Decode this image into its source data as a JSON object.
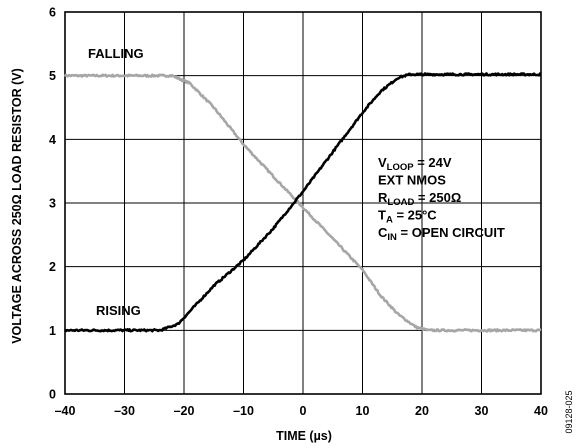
{
  "chart_data": {
    "type": "line",
    "title": "",
    "xlabel": "TIME (µs)",
    "ylabel": "VOLTAGE ACROSS 250Ω LOAD RESISTOR (V)",
    "xlim": [
      -40,
      40
    ],
    "ylim": [
      0,
      6
    ],
    "xticks": [
      -40,
      -30,
      -20,
      -10,
      0,
      10,
      20,
      30,
      40
    ],
    "yticks": [
      0,
      1,
      2,
      3,
      4,
      5,
      6
    ],
    "xtick_labels": [
      "–40",
      "–30",
      "–20",
      "–10",
      "0",
      "10",
      "20",
      "30",
      "40"
    ],
    "ytick_labels": [
      "0",
      "1",
      "2",
      "3",
      "4",
      "5",
      "6"
    ],
    "grid": true,
    "series": [
      {
        "name": "FALLING",
        "color": "#a6a6a6",
        "points": [
          [
            -40,
            5.0
          ],
          [
            -22,
            5.0
          ],
          [
            -19,
            4.88
          ],
          [
            -15,
            4.5
          ],
          [
            -10,
            3.92
          ],
          [
            -5,
            3.42
          ],
          [
            0,
            2.93
          ],
          [
            5,
            2.44
          ],
          [
            10,
            1.95
          ],
          [
            13,
            1.55
          ],
          [
            16,
            1.25
          ],
          [
            19,
            1.05
          ],
          [
            21,
            1.0
          ],
          [
            40,
            1.0
          ]
        ]
      },
      {
        "name": "RISING",
        "color": "#000000",
        "points": [
          [
            -40,
            1.0
          ],
          [
            -24,
            1.0
          ],
          [
            -21,
            1.1
          ],
          [
            -18,
            1.4
          ],
          [
            -15,
            1.7
          ],
          [
            -10,
            2.1
          ],
          [
            -5,
            2.6
          ],
          [
            0,
            3.18
          ],
          [
            5,
            3.8
          ],
          [
            10,
            4.42
          ],
          [
            13,
            4.75
          ],
          [
            16,
            4.97
          ],
          [
            18,
            5.02
          ],
          [
            40,
            5.02
          ]
        ]
      }
    ],
    "annotations": [
      {
        "main": "V",
        "sub": "LOOP",
        "rest": " = 24V"
      },
      {
        "main": "EXT NMOS",
        "sub": "",
        "rest": ""
      },
      {
        "main": "R",
        "sub": "LOAD",
        "rest": " = 250Ω"
      },
      {
        "main": "T",
        "sub": "A",
        "rest": " = 25°C"
      },
      {
        "main": "C",
        "sub": "IN",
        "rest": " = OPEN CIRCUIT"
      }
    ],
    "figure_id": "09128-025"
  }
}
